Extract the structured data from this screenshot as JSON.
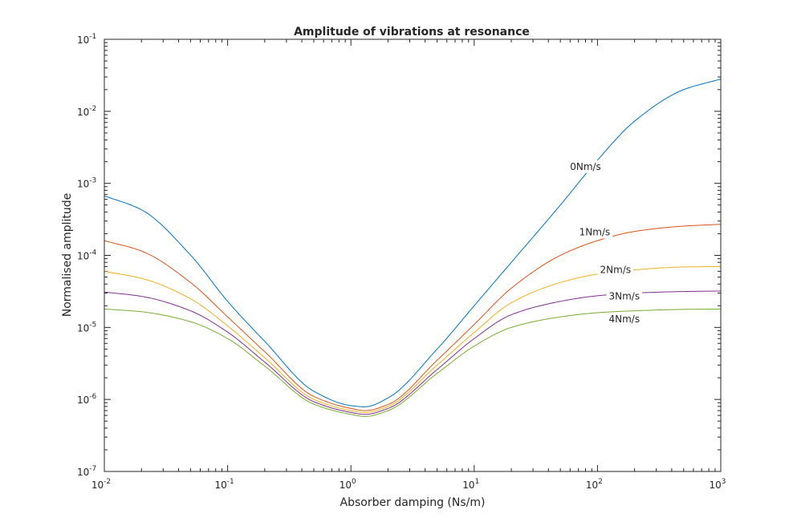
{
  "chart_data": {
    "type": "line",
    "title": "Amplitude of vibrations at resonance",
    "xlabel": "Absorber damping (Ns/m)",
    "ylabel": "Normalised amplitude",
    "xscale": "log",
    "yscale": "log",
    "xlim": [
      0.01,
      1000
    ],
    "ylim": [
      1e-07,
      0.1
    ],
    "grid": false,
    "x_ticks": [
      {
        "base": "10",
        "exp": "-2"
      },
      {
        "base": "10",
        "exp": "-1"
      },
      {
        "base": "10",
        "exp": "0"
      },
      {
        "base": "10",
        "exp": "1"
      },
      {
        "base": "10",
        "exp": "2"
      },
      {
        "base": "10",
        "exp": "3"
      }
    ],
    "y_ticks": [
      {
        "base": "10",
        "exp": "-7"
      },
      {
        "base": "10",
        "exp": "-6"
      },
      {
        "base": "10",
        "exp": "-5"
      },
      {
        "base": "10",
        "exp": "-4"
      },
      {
        "base": "10",
        "exp": "-3"
      },
      {
        "base": "10",
        "exp": "-2"
      },
      {
        "base": "10",
        "exp": "-1"
      }
    ],
    "x": [
      0.01,
      0.02,
      0.05,
      0.1,
      0.2,
      0.5,
      1,
      1.3,
      2,
      5,
      10,
      20,
      50,
      100,
      200,
      500,
      1000
    ],
    "series": [
      {
        "name": "0Nm/s",
        "color": "#0072BD",
        "values": [
          0.00067,
          0.00043,
          0.000101,
          2.3e-05,
          6.4e-06,
          1.3e-06,
          8.2e-07,
          7.9e-07,
          1.05e-06,
          5e-06,
          2e-05,
          8e-05,
          0.0005,
          0.0021,
          0.0073,
          0.02,
          0.028
        ],
        "label": {
          "x": 80,
          "y": 0.0017
        }
      },
      {
        "name": "1Nm/s",
        "color": "#D95319",
        "values": [
          0.00016,
          0.000115,
          4.2e-05,
          1.4e-05,
          4.6e-06,
          1.1e-06,
          7.5e-07,
          7e-07,
          8.5e-07,
          3.5e-06,
          1.1e-05,
          3.5e-05,
          0.0001,
          0.00016,
          0.000215,
          0.000255,
          0.00027
        ],
        "label": {
          "x": 95,
          "y": 0.00021
        }
      },
      {
        "name": "2Nm/s",
        "color": "#EDB120",
        "values": [
          6e-05,
          4.8e-05,
          2.5e-05,
          1.05e-05,
          3.8e-06,
          1e-06,
          7e-07,
          6.6e-07,
          8e-07,
          3e-06,
          8.5e-06,
          2.2e-05,
          4.2e-05,
          5.5e-05,
          6.3e-05,
          6.9e-05,
          7e-05
        ],
        "label": {
          "x": 140,
          "y": 6.3e-05
        }
      },
      {
        "name": "3Nm/s",
        "color": "#7E2F8E",
        "values": [
          3.1e-05,
          2.7e-05,
          1.7e-05,
          8.6e-06,
          3.3e-06,
          9.3e-07,
          6.6e-07,
          6.2e-07,
          7.5e-07,
          2.6e-06,
          7e-06,
          1.5e-05,
          2.3e-05,
          2.75e-05,
          3e-05,
          3.15e-05,
          3.2e-05
        ],
        "label": {
          "x": 165,
          "y": 2.7e-05
        }
      },
      {
        "name": "4Nm/s",
        "color": "#77AC30",
        "values": [
          1.8e-05,
          1.65e-05,
          1.2e-05,
          7e-06,
          2.9e-06,
          8.6e-07,
          6.2e-07,
          5.8e-07,
          7e-07,
          2.3e-06,
          5.5e-06,
          1e-05,
          1.4e-05,
          1.6e-05,
          1.7e-05,
          1.78e-05,
          1.8e-05
        ],
        "label": {
          "x": 165,
          "y": 1.3e-05
        }
      }
    ]
  }
}
